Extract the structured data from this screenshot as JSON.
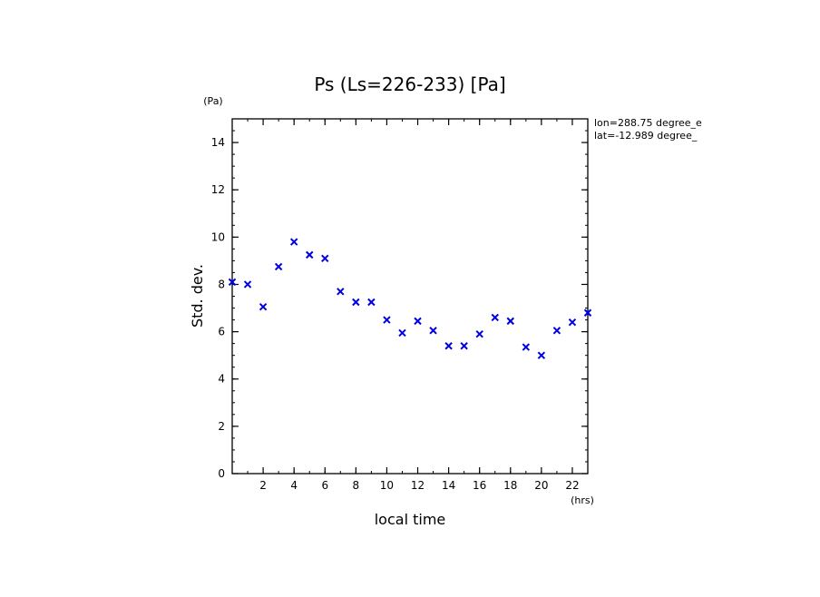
{
  "chart_data": {
    "type": "scatter",
    "title": "Ps (Ls=226-233) [Pa]",
    "xlabel": "local time",
    "ylabel": "Std. dev.",
    "x_unit": "(hrs)",
    "y_unit": "(Pa)",
    "xlim": [
      0,
      23
    ],
    "ylim": [
      0,
      15
    ],
    "x_ticks": [
      2,
      4,
      6,
      8,
      10,
      12,
      14,
      16,
      18,
      20,
      22
    ],
    "y_ticks": [
      0,
      2,
      4,
      6,
      8,
      10,
      12,
      14
    ],
    "x_tick_labels": [
      "2",
      "4",
      "6",
      "8",
      "10",
      "12",
      "14",
      "16",
      "18",
      "20",
      "22"
    ],
    "y_tick_labels": [
      "0",
      "2",
      "4",
      "6",
      "8",
      "10",
      "12",
      "14"
    ],
    "grid": false,
    "marker": "x",
    "marker_color": "#0000e0",
    "annotations": [
      "lon=288.75 degree_e",
      "lat=-12.989 degree_"
    ],
    "series": [
      {
        "x": [
          0,
          1,
          2,
          3,
          4,
          5,
          6,
          7,
          8,
          9,
          10,
          11,
          12,
          13,
          14,
          15,
          16,
          17,
          18,
          19,
          20,
          21,
          22,
          23
        ],
        "y": [
          8.1,
          8.0,
          7.05,
          8.75,
          9.8,
          9.25,
          9.1,
          7.7,
          7.25,
          7.25,
          6.5,
          5.95,
          6.45,
          6.05,
          5.4,
          5.4,
          5.9,
          6.6,
          6.45,
          5.35,
          5.0,
          6.05,
          6.4,
          6.8
        ]
      }
    ]
  }
}
